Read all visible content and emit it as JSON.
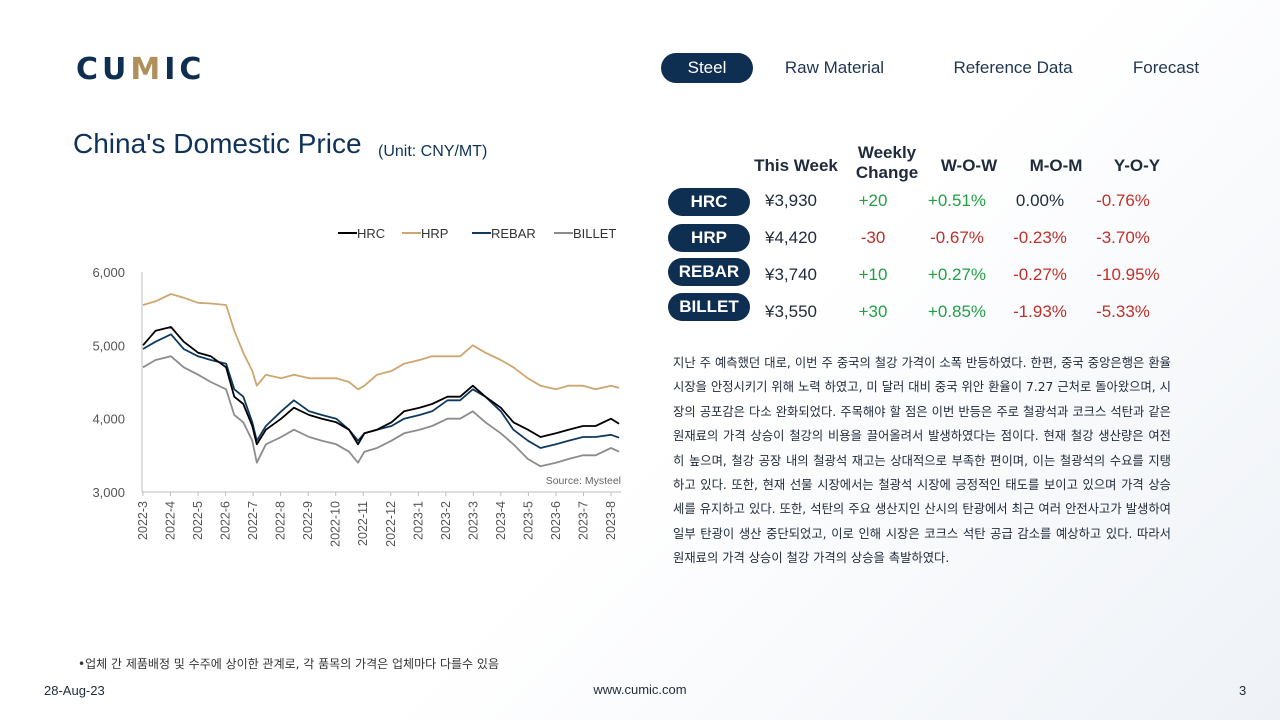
{
  "brand": {
    "logo_left": "CU",
    "logo_accent": "M",
    "logo_right": "IC"
  },
  "nav": {
    "tabs": [
      "Steel",
      "Raw Material",
      "Reference Data",
      "Forecast"
    ],
    "active": "Steel"
  },
  "title": "China's Domestic Price",
  "unit": "(Unit: CNY/MT)",
  "colors": {
    "navy": "#0f2f52",
    "hrc": "#000000",
    "hrp": "#cfa66f",
    "rebar": "#0f3a5f",
    "billet": "#8c8c8c",
    "positive": "#22a045",
    "negative": "#c0302a"
  },
  "table": {
    "headers": [
      "This Week",
      "Weekly Change",
      "W-O-W",
      "M-O-M",
      "Y-O-Y"
    ],
    "rows": [
      {
        "name": "HRC",
        "this_week": "¥3,930",
        "weekly_change": "+20",
        "wow": "+0.51%",
        "mom": "0.00%",
        "yoy": "-0.76%"
      },
      {
        "name": "HRP",
        "this_week": "¥4,420",
        "weekly_change": "-30",
        "wow": "-0.67%",
        "mom": "-0.23%",
        "yoy": "-3.70%"
      },
      {
        "name": "REBAR",
        "this_week": "¥3,740",
        "weekly_change": "+10",
        "wow": "+0.27%",
        "mom": "-0.27%",
        "yoy": "-10.95%"
      },
      {
        "name": "BILLET",
        "this_week": "¥3,550",
        "weekly_change": "+30",
        "wow": "+0.85%",
        "mom": "-1.93%",
        "yoy": "-5.33%"
      }
    ]
  },
  "commentary": "지난 주 예측했던 대로, 이번 주 중국의 철강 가격이 소폭 반등하였다. 한편, 중국 중앙은행은 환율 시장을 안정시키기 위해 노력 하였고, 미 달러 대비 중국 위안 환율이 7.27 근처로 돌아왔으며, 시장의 공포감은 다소 완화되었다. 주목해야 할 점은 이번 반등은 주로 철광석과 코크스 석탄과 같은 원재료의 가격 상승이 철강의 비용을 끌어올려서 발생하였다는 점이다. 현재 철강 생산량은 여전히 높으며, 철강 공장 내의 철광석 재고는 상대적으로 부족한 편이며, 이는 철광석의 수요를 지탱하고 있다. 또한, 현재 선물 시장에서는 철광석 시장에 긍정적인 태도를 보이고 있으며 가격 상승세를 유지하고 있다. 또한, 석탄의 주요 생산지인 산시의 탄광에서 최근 여러 안전사고가 발생하여 일부 탄광이 생산 중단되었고, 이로 인해 시장은 코크스 석탄 공급 감소를 예상하고 있다. 따라서 원재료의 가격 상승이 철강 가격의 상승을 촉발하였다.",
  "footnote": "•업체 간 제품배정 및 수주에 상이한 관계로, 각 품목의 가격은 업체마다 다를수 있음",
  "footer": {
    "date": "28-Aug-23",
    "website": "www.cumic.com",
    "page": "3"
  },
  "chart_data": {
    "type": "line",
    "source": "Source: Mysteel",
    "legend_position": "top-right",
    "grid": false,
    "ylim": [
      3000,
      6000
    ],
    "yticks": [
      "3,000",
      "4,000",
      "5,000",
      "6,000"
    ],
    "xticks": [
      "2022-3",
      "2022-4",
      "2022-5",
      "2022-6",
      "2022-7",
      "2022-8",
      "2022-9",
      "2022-10",
      "2022-11",
      "2022-12",
      "2023-1",
      "2023-2",
      "2023-3",
      "2023-4",
      "2023-5",
      "2023-6",
      "2023-7",
      "2023-8"
    ],
    "x": [
      "2022-03-01",
      "2022-03-15",
      "2022-04-01",
      "2022-04-15",
      "2022-05-01",
      "2022-05-15",
      "2022-06-01",
      "2022-06-10",
      "2022-06-20",
      "2022-06-30",
      "2022-07-05",
      "2022-07-15",
      "2022-08-01",
      "2022-08-15",
      "2022-09-01",
      "2022-09-15",
      "2022-10-01",
      "2022-10-15",
      "2022-10-25",
      "2022-11-01",
      "2022-11-15",
      "2022-12-01",
      "2022-12-15",
      "2023-01-01",
      "2023-01-15",
      "2023-02-01",
      "2023-02-15",
      "2023-03-01",
      "2023-03-15",
      "2023-04-01",
      "2023-04-15",
      "2023-05-01",
      "2023-05-15",
      "2023-06-01",
      "2023-06-15",
      "2023-07-01",
      "2023-07-15",
      "2023-08-01",
      "2023-08-10"
    ],
    "series": [
      {
        "name": "HRC",
        "color": "#000000",
        "values": [
          5000,
          5200,
          5250,
          5050,
          4900,
          4850,
          4700,
          4300,
          4200,
          3900,
          3650,
          3850,
          4000,
          4150,
          4050,
          4000,
          3950,
          3850,
          3650,
          3800,
          3850,
          3950,
          4100,
          4150,
          4200,
          4300,
          4300,
          4450,
          4300,
          4150,
          3950,
          3850,
          3750,
          3800,
          3850,
          3900,
          3900,
          4000,
          3930
        ]
      },
      {
        "name": "HRP",
        "color": "#cfa66f",
        "values": [
          5550,
          5600,
          5700,
          5650,
          5580,
          5570,
          5550,
          5200,
          4900,
          4650,
          4450,
          4600,
          4550,
          4600,
          4550,
          4550,
          4550,
          4500,
          4400,
          4450,
          4600,
          4650,
          4750,
          4800,
          4850,
          4850,
          4850,
          5000,
          4900,
          4800,
          4700,
          4550,
          4450,
          4400,
          4450,
          4450,
          4400,
          4450,
          4420
        ]
      },
      {
        "name": "REBAR",
        "color": "#0f3a5f",
        "values": [
          4950,
          5050,
          5150,
          4950,
          4850,
          4800,
          4750,
          4400,
          4300,
          3950,
          3700,
          3900,
          4100,
          4250,
          4100,
          4050,
          4000,
          3850,
          3700,
          3800,
          3850,
          3900,
          4000,
          4050,
          4100,
          4250,
          4250,
          4400,
          4300,
          4100,
          3850,
          3700,
          3600,
          3650,
          3700,
          3750,
          3750,
          3780,
          3740
        ]
      },
      {
        "name": "BILLET",
        "color": "#8c8c8c",
        "values": [
          4700,
          4800,
          4850,
          4700,
          4600,
          4500,
          4400,
          4050,
          3950,
          3700,
          3400,
          3650,
          3750,
          3850,
          3750,
          3700,
          3650,
          3550,
          3400,
          3550,
          3600,
          3700,
          3800,
          3850,
          3900,
          4000,
          4000,
          4100,
          3950,
          3800,
          3650,
          3450,
          3350,
          3400,
          3450,
          3500,
          3500,
          3600,
          3550
        ]
      }
    ]
  }
}
